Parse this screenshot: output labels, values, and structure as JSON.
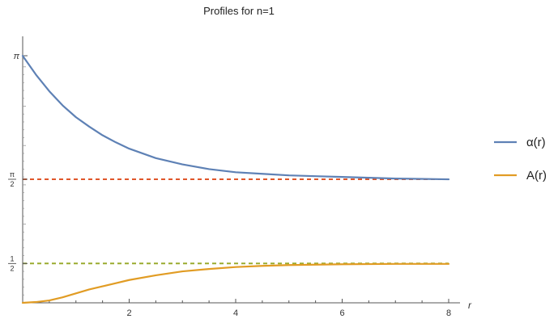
{
  "chart_data": {
    "type": "line",
    "title": "Profiles for n=1",
    "xlabel": "r",
    "ylabel": "",
    "xlim": [
      0,
      8
    ],
    "ylim": [
      0,
      3.1416
    ],
    "x_ticks": [
      2,
      4,
      6,
      8
    ],
    "x_tick_labels": [
      "2",
      "4",
      "6",
      "8"
    ],
    "y_tick_labels": [
      {
        "value": 3.1416,
        "label": "π",
        "kind": "plain"
      },
      {
        "value": 1.5708,
        "num": "π",
        "den": "2",
        "kind": "fraction"
      },
      {
        "value": 0.5,
        "num": "1",
        "den": "2",
        "kind": "fraction"
      }
    ],
    "reference_lines": [
      {
        "y": 1.5708,
        "style": "dashed",
        "color": "#e0562a"
      },
      {
        "y": 0.5,
        "style": "dashed",
        "color": "#9aab2e"
      }
    ],
    "series": [
      {
        "name": "α(r)",
        "color": "#5e81b5",
        "x": [
          0,
          0.25,
          0.5,
          0.75,
          1,
          1.25,
          1.5,
          1.75,
          2,
          2.5,
          3,
          3.5,
          4,
          4.5,
          5,
          5.5,
          6,
          7,
          8
        ],
        "y": [
          3.14,
          2.9,
          2.69,
          2.51,
          2.36,
          2.24,
          2.13,
          2.04,
          1.96,
          1.84,
          1.76,
          1.7,
          1.66,
          1.64,
          1.62,
          1.61,
          1.6,
          1.58,
          1.57
        ]
      },
      {
        "name": "A(r)",
        "color": "#e19c24",
        "x": [
          0,
          0.25,
          0.5,
          0.75,
          1,
          1.25,
          1.5,
          1.75,
          2,
          2.5,
          3,
          3.5,
          4,
          4.5,
          5,
          5.5,
          6,
          7,
          8
        ],
        "y": [
          0,
          0.01,
          0.03,
          0.07,
          0.12,
          0.17,
          0.21,
          0.25,
          0.29,
          0.35,
          0.4,
          0.43,
          0.455,
          0.47,
          0.48,
          0.485,
          0.49,
          0.495,
          0.495
        ]
      }
    ],
    "legend": "right"
  }
}
